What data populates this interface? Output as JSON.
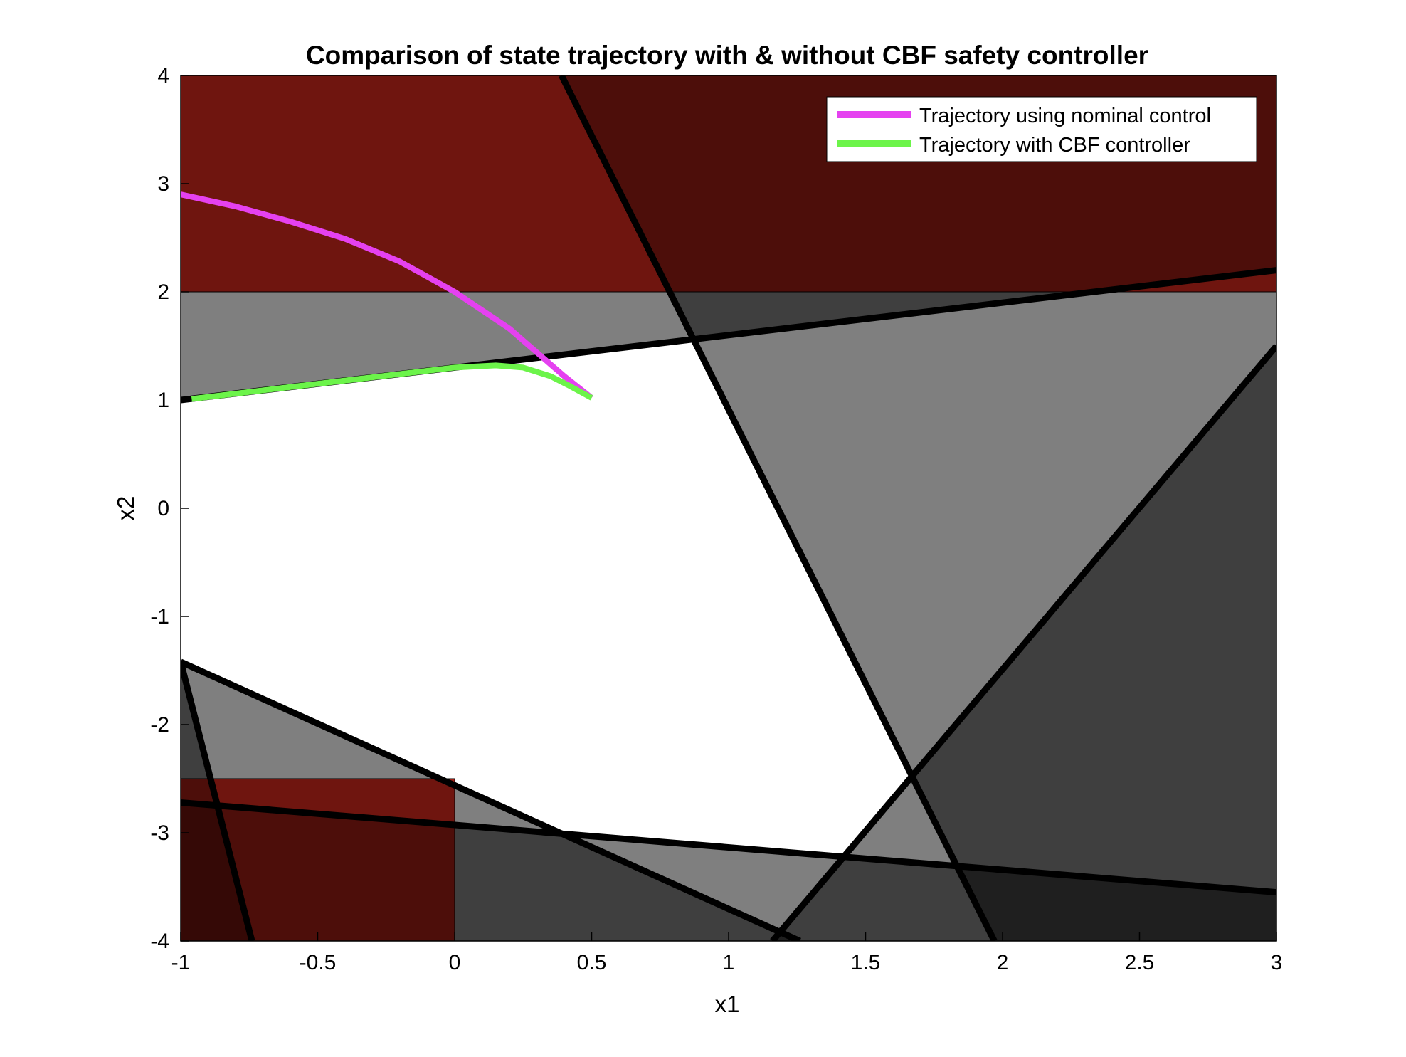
{
  "chart_data": {
    "type": "line",
    "title": "Comparison of state trajectory with & without CBF safety controller",
    "xlabel": "x1",
    "ylabel": "x2",
    "xlim": [
      -1,
      3
    ],
    "ylim": [
      -4,
      4
    ],
    "xticks": [
      "-1",
      "-0.5",
      "0",
      "0.5",
      "1",
      "1.5",
      "2",
      "2.5",
      "3"
    ],
    "yticks": [
      "-4",
      "-3",
      "-2",
      "-1",
      "0",
      "1",
      "2",
      "3",
      "4"
    ],
    "grid": false,
    "legend_position": "top-right",
    "colors": {
      "unsafe_red": "#a01f16",
      "unsafe_red_dark": "#72130e",
      "unsafe_red_darkest": "#4d0d09",
      "gray_1": "#808080",
      "gray_2": "#3a3a3a",
      "gray_3": "#1c1c1c",
      "boundary": "#000000",
      "nominal": "#e541f0",
      "cbf": "#6cf44a"
    },
    "regions": [
      {
        "kind": "unsafe",
        "x": [
          -1,
          3,
          3,
          -1
        ],
        "y": [
          2,
          2,
          4,
          4
        ]
      },
      {
        "kind": "unsafe",
        "x": [
          -1,
          0,
          0,
          -1
        ],
        "y": [
          -4,
          -4,
          -2.5,
          -2.5
        ]
      }
    ],
    "boundaries": [
      {
        "x": [
          -1,
          3
        ],
        "y": [
          1.0,
          2.2
        ]
      },
      {
        "x": [
          0.39,
          1.97
        ],
        "y": [
          4,
          -4
        ]
      },
      {
        "x": [
          1.16,
          3
        ],
        "y": [
          -4,
          1.5
        ]
      },
      {
        "x": [
          -1,
          1.26
        ],
        "y": [
          -1.42,
          -4
        ]
      },
      {
        "x": [
          -1,
          -0.74
        ],
        "y": [
          -1.42,
          -4
        ]
      },
      {
        "x": [
          -1,
          3
        ],
        "y": [
          -2.72,
          -3.55
        ]
      }
    ],
    "series": [
      {
        "name": "Trajectory using nominal control",
        "color": "#e541f0",
        "x": [
          -1,
          -0.8,
          -0.6,
          -0.4,
          -0.2,
          0,
          0.2,
          0.3,
          0.4,
          0.5
        ],
        "y": [
          2.9,
          2.79,
          2.65,
          2.49,
          2.28,
          2.0,
          1.66,
          1.44,
          1.22,
          1.02
        ]
      },
      {
        "name": "Trajectory with CBF controller",
        "color": "#6cf44a",
        "x": [
          -0.96,
          -0.6,
          -0.2,
          0,
          0.15,
          0.25,
          0.35,
          0.42,
          0.5
        ],
        "y": [
          1.01,
          1.12,
          1.24,
          1.3,
          1.32,
          1.3,
          1.22,
          1.13,
          1.02
        ]
      }
    ]
  }
}
